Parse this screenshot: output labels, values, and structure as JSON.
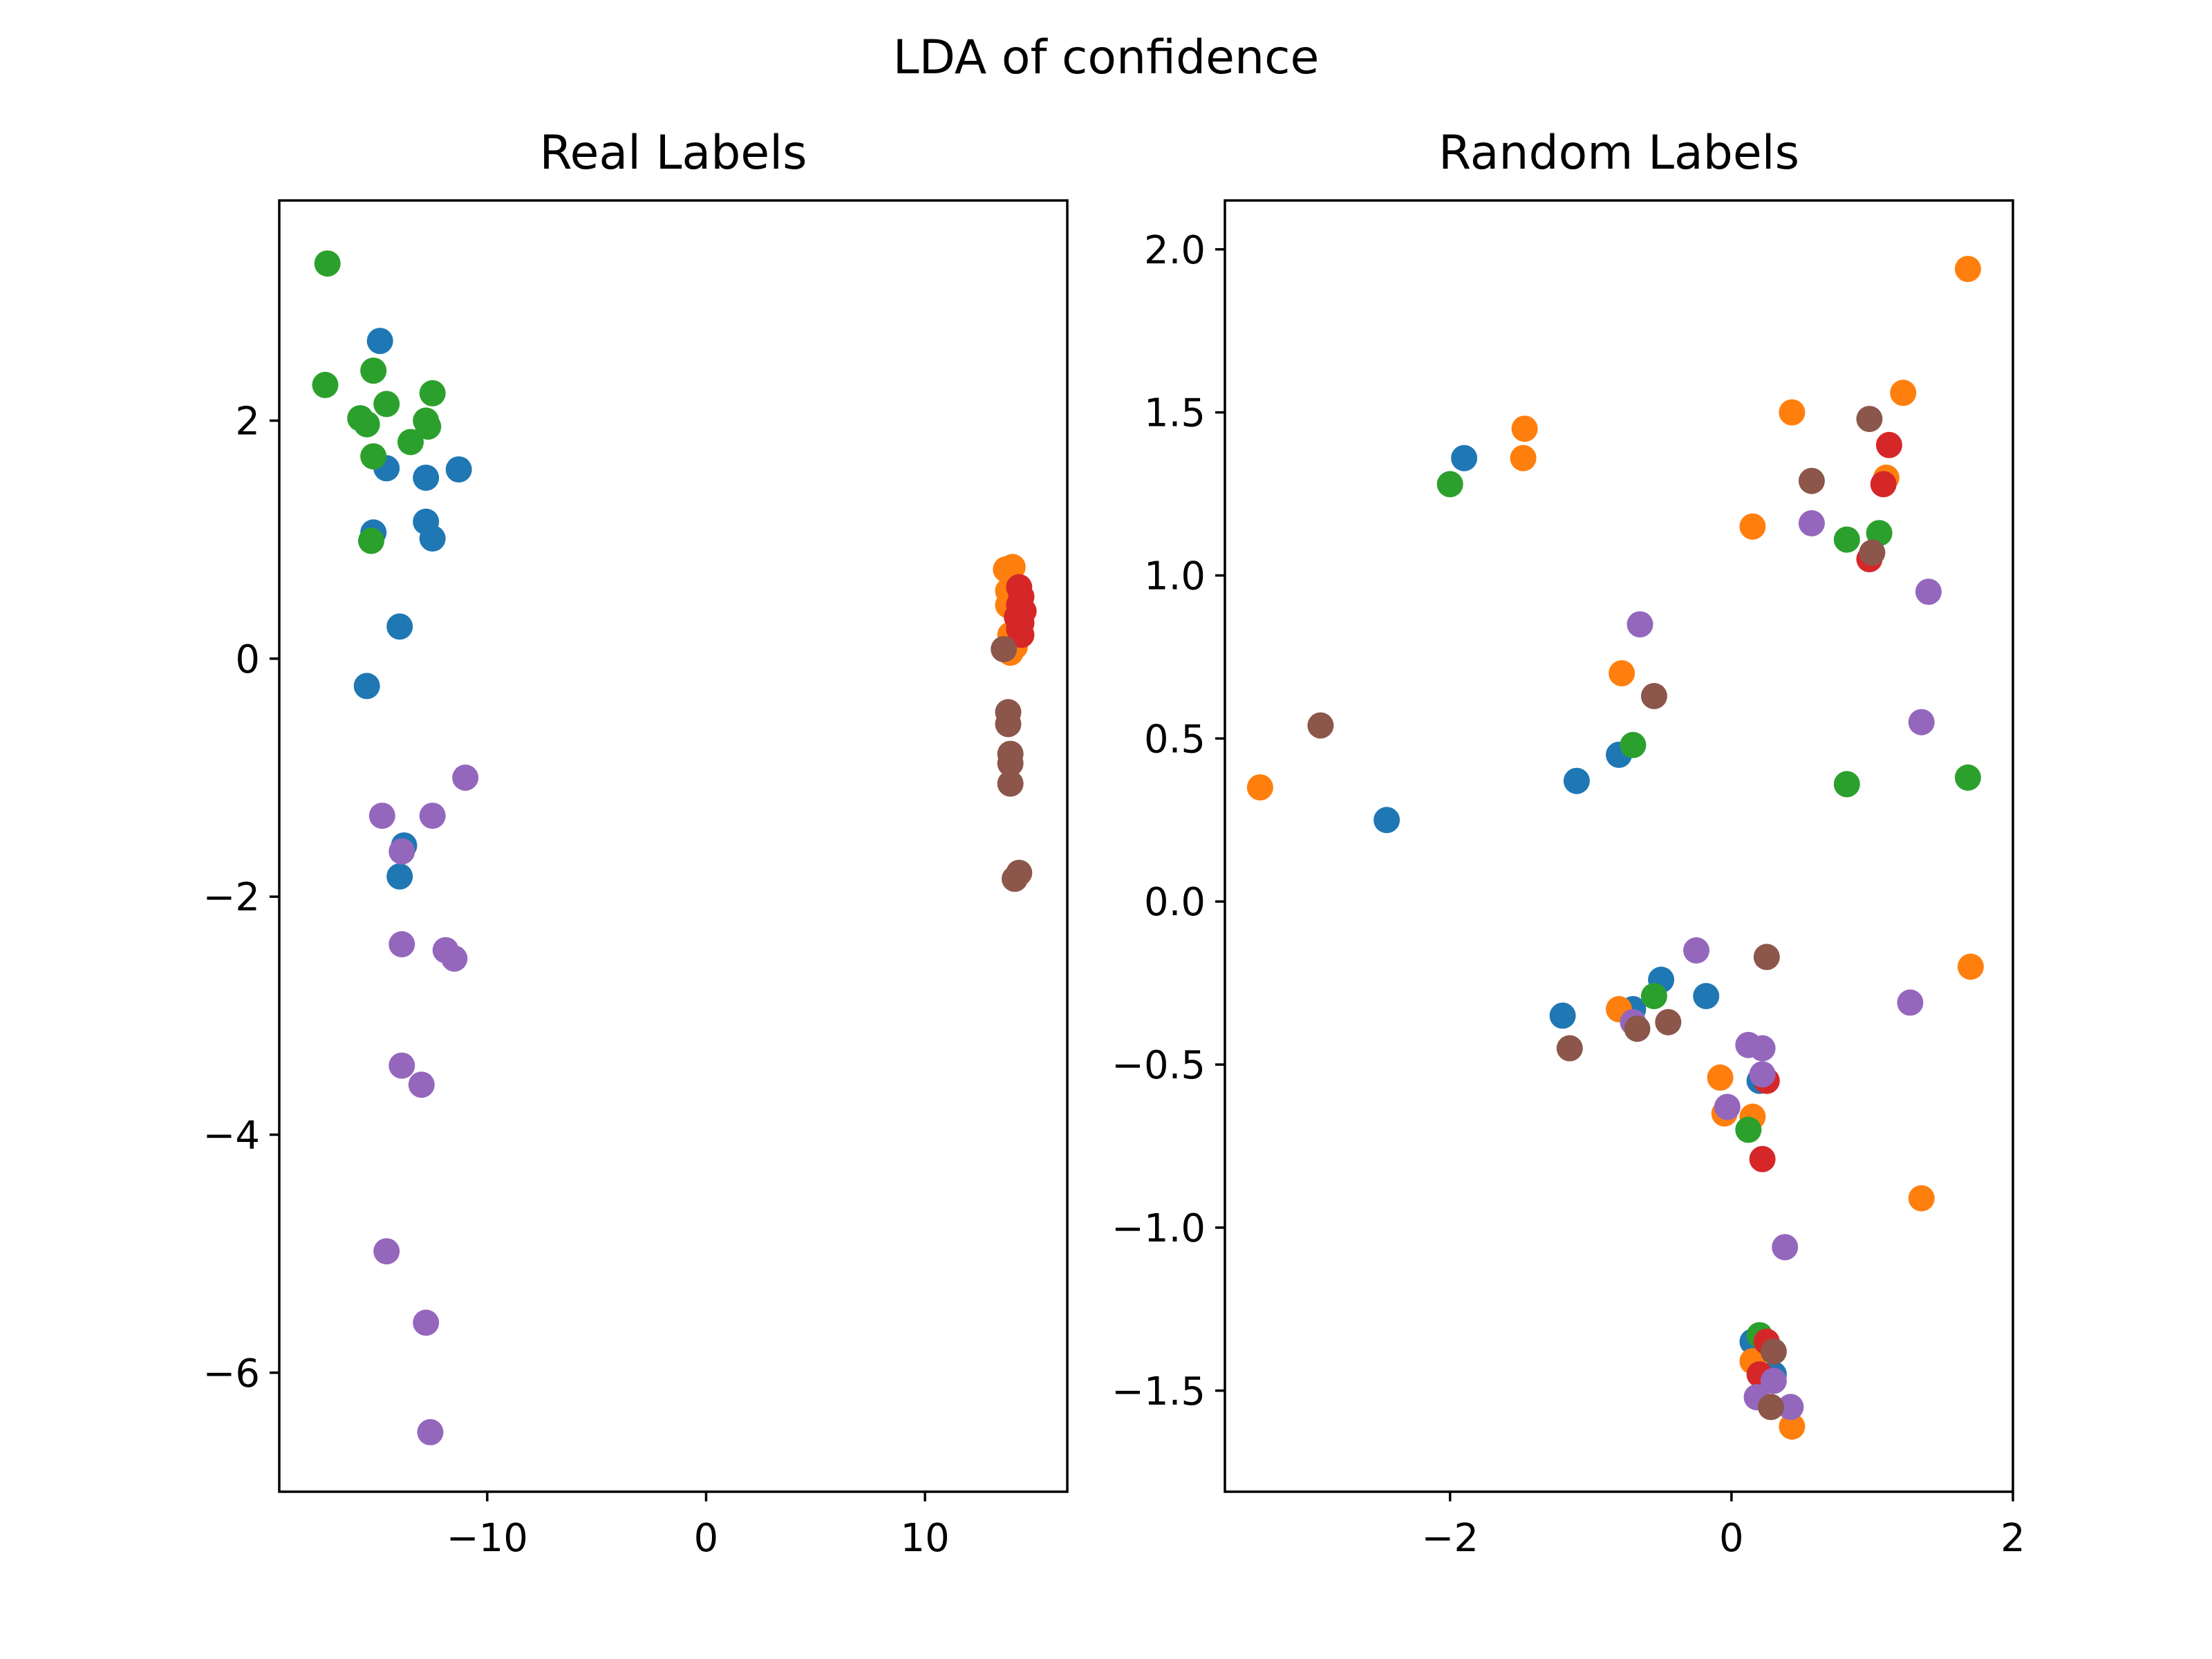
{
  "colors": {
    "palette": [
      "#1f77b4",
      "#ff7f0e",
      "#2ca02c",
      "#d62728",
      "#9467bd",
      "#8c564b"
    ]
  },
  "chart_data": {
    "title": "LDA of confidence",
    "panels": [
      {
        "type": "scatter",
        "title": "Real Labels",
        "xlabel": "",
        "ylabel": "",
        "xlim": [
          -19.5,
          16.5
        ],
        "ylim": [
          -7.0,
          3.85
        ],
        "xticks": [
          -10,
          0,
          10
        ],
        "yticks": [
          -6,
          -4,
          -2,
          0,
          2
        ],
        "xtick_labels": [
          "−10",
          "0",
          "10"
        ],
        "ytick_labels": [
          "−6",
          "−4",
          "−2",
          "0",
          "2"
        ],
        "grid": false,
        "series": [
          {
            "color": "#1f77b4",
            "points": [
              [
                -14.9,
                2.67
              ],
              [
                -14.6,
                1.6
              ],
              [
                -12.8,
                1.52
              ],
              [
                -11.3,
                1.59
              ],
              [
                -15.2,
                1.06
              ],
              [
                -12.8,
                1.15
              ],
              [
                -12.5,
                1.01
              ],
              [
                -14.0,
                0.27
              ],
              [
                -15.5,
                -0.23
              ],
              [
                -13.8,
                -1.57
              ],
              [
                -14.0,
                -1.83
              ]
            ]
          },
          {
            "color": "#ff7f0e",
            "points": [
              [
                13.7,
                0.75
              ],
              [
                14.0,
                0.77
              ],
              [
                13.8,
                0.57
              ],
              [
                14.1,
                0.5
              ],
              [
                13.8,
                0.45
              ],
              [
                14.2,
                0.35
              ],
              [
                13.9,
                0.2
              ],
              [
                14.1,
                0.1
              ],
              [
                13.9,
                0.05
              ]
            ]
          },
          {
            "color": "#2ca02c",
            "points": [
              [
                -17.3,
                3.32
              ],
              [
                -17.4,
                2.3
              ],
              [
                -15.2,
                2.42
              ],
              [
                -12.5,
                2.23
              ],
              [
                -14.6,
                2.14
              ],
              [
                -15.8,
                2.02
              ],
              [
                -12.8,
                2.0
              ],
              [
                -12.7,
                1.95
              ],
              [
                -15.5,
                1.97
              ],
              [
                -13.5,
                1.82
              ],
              [
                -15.2,
                1.7
              ],
              [
                -15.3,
                0.99
              ]
            ]
          },
          {
            "color": "#d62728",
            "points": [
              [
                14.3,
                0.6
              ],
              [
                14.4,
                0.52
              ],
              [
                14.3,
                0.45
              ],
              [
                14.5,
                0.4
              ],
              [
                14.2,
                0.35
              ],
              [
                14.4,
                0.3
              ],
              [
                14.3,
                0.25
              ],
              [
                14.4,
                0.2
              ]
            ]
          },
          {
            "color": "#9467bd",
            "points": [
              [
                -11.0,
                -1.0
              ],
              [
                -14.8,
                -1.32
              ],
              [
                -12.5,
                -1.32
              ],
              [
                -13.9,
                -1.62
              ],
              [
                -13.9,
                -2.4
              ],
              [
                -11.9,
                -2.45
              ],
              [
                -11.5,
                -2.52
              ],
              [
                -13.9,
                -3.42
              ],
              [
                -13.0,
                -3.58
              ],
              [
                -14.6,
                -4.98
              ],
              [
                -12.8,
                -5.58
              ],
              [
                -12.6,
                -6.5
              ]
            ]
          },
          {
            "color": "#8c564b",
            "points": [
              [
                13.6,
                0.08
              ],
              [
                13.8,
                -0.45
              ],
              [
                13.8,
                -0.55
              ],
              [
                13.9,
                -0.8
              ],
              [
                13.9,
                -0.88
              ],
              [
                13.9,
                -1.05
              ],
              [
                14.3,
                -1.8
              ],
              [
                14.1,
                -1.85
              ]
            ]
          }
        ]
      },
      {
        "type": "scatter",
        "title": "Random Labels",
        "xlabel": "",
        "ylabel": "",
        "xlim": [
          -3.6,
          2.0
        ],
        "ylim": [
          -1.81,
          2.15
        ],
        "xticks": [
          -2,
          0,
          2
        ],
        "yticks": [
          -1.5,
          -1.0,
          -0.5,
          0.0,
          0.5,
          1.0,
          1.5,
          2.0
        ],
        "xtick_labels": [
          "−2",
          "0",
          "2"
        ],
        "ytick_labels": [
          "−1.5",
          "−1.0",
          "−0.5",
          "0.0",
          "0.5",
          "1.0",
          "1.5",
          "2.0"
        ],
        "grid": false,
        "series": [
          {
            "color": "#1f77b4",
            "points": [
              [
                -1.9,
                1.36
              ],
              [
                -0.8,
                0.45
              ],
              [
                -1.1,
                0.37
              ],
              [
                -2.45,
                0.25
              ],
              [
                -0.5,
                -0.24
              ],
              [
                -0.18,
                -0.29
              ],
              [
                -1.2,
                -0.35
              ],
              [
                -0.7,
                -0.33
              ],
              [
                0.2,
                -0.55
              ],
              [
                0.15,
                -1.35
              ],
              [
                0.3,
                -1.45
              ]
            ]
          },
          {
            "color": "#ff7f0e",
            "points": [
              [
                1.68,
                1.94
              ],
              [
                1.22,
                1.56
              ],
              [
                -1.47,
                1.45
              ],
              [
                0.43,
                1.5
              ],
              [
                -1.48,
                1.36
              ],
              [
                1.1,
                1.3
              ],
              [
                0.15,
                1.15
              ],
              [
                -0.78,
                0.7
              ],
              [
                -3.35,
                0.35
              ],
              [
                1.7,
                -0.2
              ],
              [
                -0.8,
                -0.33
              ],
              [
                -0.08,
                -0.54
              ],
              [
                -0.05,
                -0.65
              ],
              [
                0.15,
                -0.66
              ],
              [
                1.35,
                -0.91
              ],
              [
                0.15,
                -1.41
              ],
              [
                0.43,
                -1.61
              ]
            ]
          },
          {
            "color": "#2ca02c",
            "points": [
              [
                -2.0,
                1.28
              ],
              [
                1.05,
                1.13
              ],
              [
                0.82,
                1.11
              ],
              [
                -0.7,
                0.48
              ],
              [
                0.82,
                0.36
              ],
              [
                1.68,
                0.38
              ],
              [
                -0.55,
                -0.29
              ],
              [
                0.12,
                -0.7
              ],
              [
                0.2,
                -1.33
              ]
            ]
          },
          {
            "color": "#d62728",
            "points": [
              [
                1.12,
                1.4
              ],
              [
                1.08,
                1.28
              ],
              [
                0.98,
                1.05
              ],
              [
                0.25,
                -0.55
              ],
              [
                0.22,
                -0.79
              ],
              [
                0.25,
                -1.35
              ],
              [
                0.2,
                -1.45
              ]
            ]
          },
          {
            "color": "#9467bd",
            "points": [
              [
                -0.65,
                0.85
              ],
              [
                0.57,
                1.16
              ],
              [
                1.4,
                0.95
              ],
              [
                1.35,
                0.55
              ],
              [
                -0.25,
                -0.15
              ],
              [
                1.27,
                -0.31
              ],
              [
                -0.7,
                -0.37
              ],
              [
                0.12,
                -0.44
              ],
              [
                0.22,
                -0.45
              ],
              [
                0.22,
                -0.53
              ],
              [
                -0.03,
                -0.63
              ],
              [
                0.38,
                -1.06
              ],
              [
                0.3,
                -1.47
              ],
              [
                0.18,
                -1.52
              ],
              [
                0.42,
                -1.55
              ]
            ]
          },
          {
            "color": "#8c564b",
            "points": [
              [
                0.98,
                1.48
              ],
              [
                0.57,
                1.29
              ],
              [
                1.0,
                1.07
              ],
              [
                -0.55,
                0.63
              ],
              [
                -2.92,
                0.54
              ],
              [
                0.25,
                -0.17
              ],
              [
                -0.45,
                -0.37
              ],
              [
                -0.67,
                -0.39
              ],
              [
                -1.15,
                -0.45
              ],
              [
                0.3,
                -1.38
              ],
              [
                0.28,
                -1.55
              ]
            ]
          }
        ]
      }
    ]
  }
}
